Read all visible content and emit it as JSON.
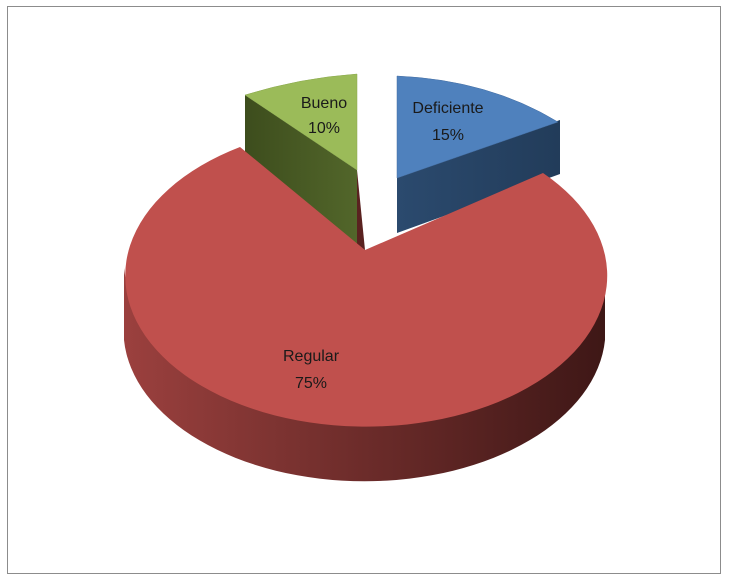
{
  "chart_data": {
    "type": "pie",
    "title": "",
    "slices": [
      {
        "label": "Deficiente",
        "value": 15,
        "display": "15%",
        "color": "#4f81bd",
        "side_color": "#2f4d70"
      },
      {
        "label": "Regular",
        "value": 75,
        "display": "75%",
        "color": "#c0504d",
        "side_color": "#6e2a28"
      },
      {
        "label": "Bueno",
        "value": 10,
        "display": "10%",
        "color": "#9bbb59",
        "side_color": "#4f6328"
      }
    ]
  }
}
